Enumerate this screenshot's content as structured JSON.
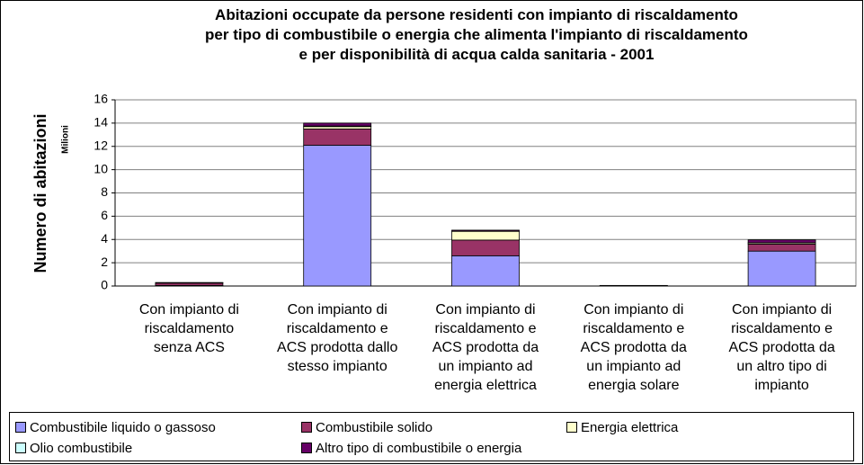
{
  "chart_data": {
    "type": "stacked_bar",
    "title": "Abitazioni occupate da persone residenti con impianto di riscaldamento\nper tipo di combustibile o energia che alimenta l'impianto di riscaldamento\ne per disponibilità di acqua calda sanitaria - 2001",
    "y_label": "Numero di abitazioni",
    "y_unit": "Milioni",
    "categories": [
      "Con impianto di\nriscaldamento\nsenza ACS",
      "Con impianto di\nriscaldamento e\nACS prodotta dallo\nstesso impianto",
      "Con impianto di\nriscaldamento e\nACS prodotta da\nun impianto ad\nenergia elettrica",
      "Con impianto di\nriscaldamento e\nACS prodotta da\nun impianto ad\nenergia solare",
      "Con impianto di\nriscaldamento e\nACS prodotta da\nun altro tipo di\nimpianto"
    ],
    "series": [
      {
        "name": "Combustibile liquido o gassoso",
        "color": "#9999ff",
        "values": [
          0.05,
          12.1,
          2.6,
          0.03,
          3.0
        ]
      },
      {
        "name": "Combustibile solido",
        "color": "#993366",
        "values": [
          0.2,
          1.4,
          1.35,
          0.01,
          0.6
        ]
      },
      {
        "name": "Energia elettrica",
        "color": "#ffffcc",
        "values": [
          0.02,
          0.2,
          0.75,
          0.01,
          0.1
        ]
      },
      {
        "name": "Olio combustibile",
        "color": "#ccffff",
        "values": [
          0.01,
          0.05,
          0.02,
          0.0,
          0.02
        ]
      },
      {
        "name": "Altro tipo di combustibile o energia",
        "color": "#660066",
        "values": [
          0.02,
          0.25,
          0.08,
          0.0,
          0.25
        ]
      }
    ],
    "ylim": [
      0,
      16
    ],
    "yticks": [
      0,
      2,
      4,
      6,
      8,
      10,
      12,
      14,
      16
    ],
    "grid": true
  }
}
